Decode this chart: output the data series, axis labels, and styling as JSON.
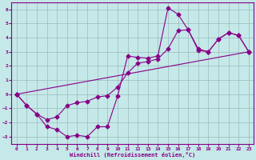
{
  "background_color": "#c5e8e8",
  "line_color": "#880088",
  "grid_color": "#99bbbb",
  "xlabel": "Windchill (Refroidissement éolien,°C)",
  "xlim": [
    -0.5,
    23.5
  ],
  "ylim": [
    -3.5,
    6.5
  ],
  "xticks": [
    0,
    1,
    2,
    3,
    4,
    5,
    6,
    7,
    8,
    9,
    10,
    11,
    12,
    13,
    14,
    15,
    16,
    17,
    18,
    19,
    20,
    21,
    22,
    23
  ],
  "yticks": [
    -3,
    -2,
    -1,
    0,
    1,
    2,
    3,
    4,
    5,
    6
  ],
  "line1_x": [
    0,
    1,
    2,
    3,
    4,
    5,
    6,
    7,
    8,
    9,
    10,
    11,
    12,
    13,
    14,
    15,
    16,
    17,
    18,
    19,
    20,
    21,
    22,
    23
  ],
  "line1_y": [
    0.0,
    -0.8,
    -1.4,
    -2.3,
    -2.5,
    -3.0,
    -2.9,
    -3.0,
    -2.3,
    -2.3,
    -0.15,
    2.7,
    2.6,
    2.55,
    2.7,
    6.1,
    5.65,
    4.55,
    3.1,
    3.0,
    3.9,
    4.35,
    4.15,
    3.0
  ],
  "line2_x": [
    0,
    1,
    2,
    3,
    4,
    5,
    6,
    7,
    8,
    9,
    10,
    11,
    12,
    13,
    14,
    15,
    16,
    17,
    18,
    19,
    20,
    21,
    22,
    23
  ],
  "line2_y": [
    0.0,
    -0.8,
    -1.4,
    -1.8,
    -1.6,
    -0.8,
    -0.6,
    -0.5,
    -0.2,
    -0.1,
    0.5,
    1.5,
    2.2,
    2.3,
    2.5,
    3.2,
    4.5,
    4.55,
    3.2,
    3.0,
    3.9,
    4.35,
    4.15,
    3.0
  ],
  "line3_x": [
    0,
    23
  ],
  "line3_y": [
    0.0,
    3.0
  ],
  "marker": "D",
  "markersize": 2.5,
  "linewidth": 0.8
}
